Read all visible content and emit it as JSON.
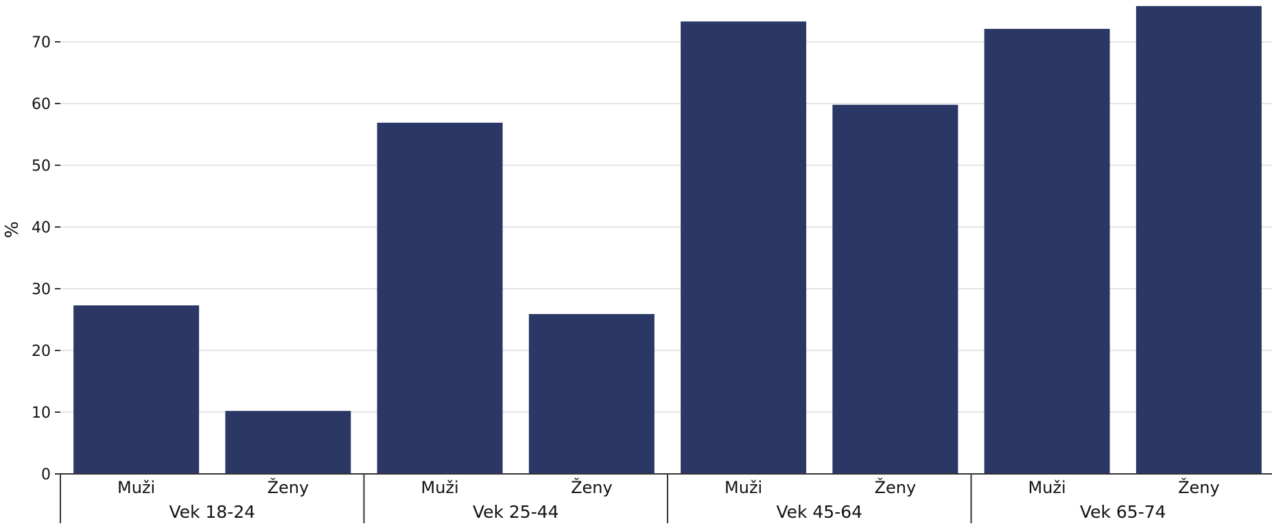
{
  "chart_data": {
    "type": "bar",
    "ylabel": "%",
    "ylim": [
      0,
      76
    ],
    "yticks": [
      0,
      10,
      20,
      30,
      40,
      50,
      60,
      70
    ],
    "grid": true,
    "bar_color": "#2b3764",
    "grid_color": "#e6e6e6",
    "groups": [
      {
        "label": "Vek 18-24",
        "categories": [
          "Muži",
          "Ženy"
        ],
        "values": [
          27.3,
          10.2
        ]
      },
      {
        "label": "Vek 25-44",
        "categories": [
          "Muži",
          "Ženy"
        ],
        "values": [
          56.9,
          25.9
        ]
      },
      {
        "label": "Vek 45-64",
        "categories": [
          "Muži",
          "Ženy"
        ],
        "values": [
          73.3,
          59.8
        ]
      },
      {
        "label": "Vek 65-74",
        "categories": [
          "Muži",
          "Ženy"
        ],
        "values": [
          72.1,
          75.8
        ]
      }
    ]
  }
}
